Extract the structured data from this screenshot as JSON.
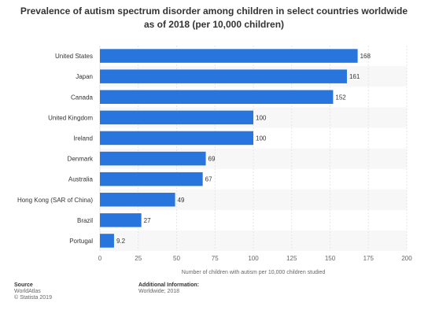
{
  "chart_data": {
    "type": "bar",
    "orientation": "horizontal",
    "title_line1": "Prevalence of autism spectrum disorder among children in select countries worldwide",
    "title_line2": "as of 2018 (per 10,000 children)",
    "xlabel": "Number of children with autism per 10,000 children studied",
    "ylabel": "",
    "categories": [
      "United States",
      "Japan",
      "Canada",
      "United Kingdom",
      "Ireland",
      "Denmark",
      "Australia",
      "Hong Kong (SAR of China)",
      "Brazil",
      "Portugal"
    ],
    "values": [
      168,
      161,
      152,
      100,
      100,
      69,
      67,
      49,
      27,
      9.2
    ],
    "value_labels": [
      "168",
      "161",
      "152",
      "100",
      "100",
      "69",
      "67",
      "49",
      "27",
      "9.2"
    ],
    "xlim": [
      0,
      200
    ],
    "xticks": [
      0,
      25,
      50,
      75,
      100,
      125,
      150,
      175,
      200
    ],
    "grid": true,
    "legend": "none",
    "bar_color": "#2876dd"
  },
  "footer": {
    "source_heading": "Source",
    "source_line1": "WorldAtlas",
    "source_line2": "© Statista 2019",
    "info_heading": "Additional Information:",
    "info_line1": "Worldwide; 2018"
  }
}
